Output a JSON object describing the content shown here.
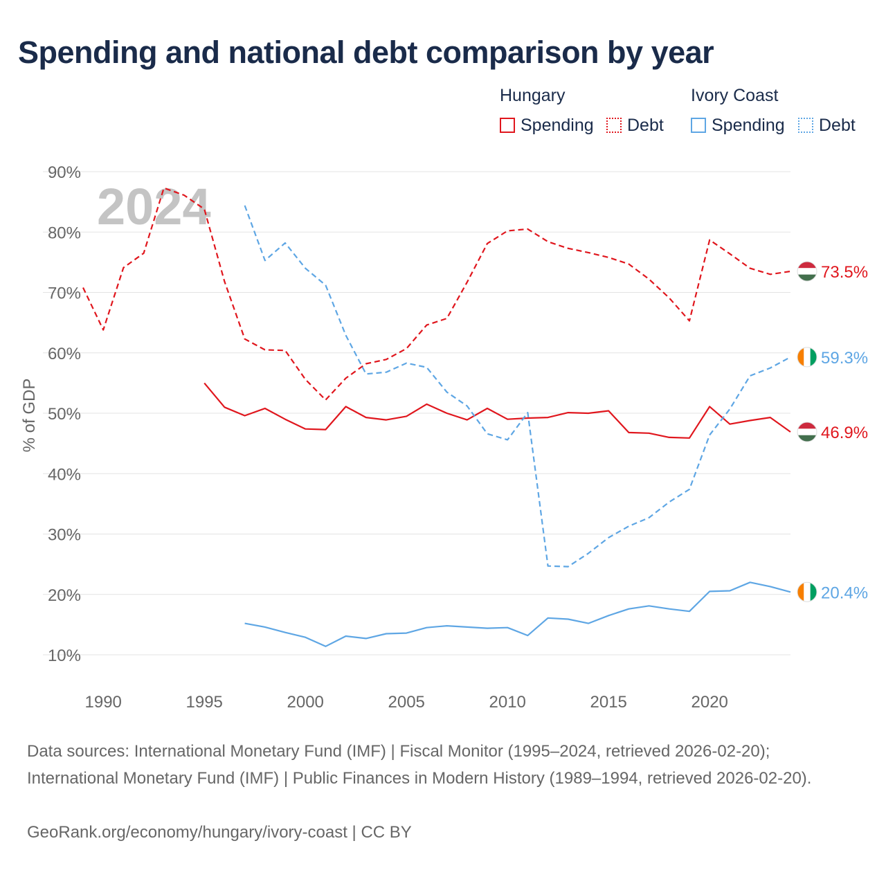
{
  "title": "Spending and national debt comparison by year",
  "legend": {
    "hungary": {
      "name": "Hungary",
      "spending": "Spending",
      "debt": "Debt"
    },
    "ivory_coast": {
      "name": "Ivory Coast",
      "spending": "Spending",
      "debt": "Debt"
    }
  },
  "colors": {
    "hungary": "#e0161d",
    "ivory_coast": "#5ea6e4",
    "grid": "#e3e3e3",
    "axis_text": "#666666",
    "year_watermark": "#c4c4c4"
  },
  "flag_icons": {
    "hungary": "hungary-flag-icon",
    "ivory_coast": "ivory-coast-flag-icon"
  },
  "chart_data": {
    "type": "line",
    "ylabel": "% of GDP",
    "xlim": [
      1989,
      2024
    ],
    "ylim": [
      5,
      90
    ],
    "yticks": [
      10,
      20,
      30,
      40,
      50,
      60,
      70,
      80,
      90
    ],
    "ytick_labels": [
      "10%",
      "20%",
      "30%",
      "40%",
      "50%",
      "60%",
      "70%",
      "80%",
      "90%"
    ],
    "xticks": [
      1990,
      1995,
      2000,
      2005,
      2010,
      2015,
      2020
    ],
    "xtick_labels": [
      "1990",
      "1995",
      "2000",
      "2005",
      "2010",
      "2015",
      "2020"
    ],
    "year_label": "2024",
    "series": [
      {
        "name": "Hungary Debt",
        "country": "hungary",
        "style": "dashed",
        "end_label": "73.5%",
        "x": [
          1989,
          1990,
          1991,
          1992,
          1993,
          1994,
          1995,
          1996,
          1997,
          1998,
          1999,
          2000,
          2001,
          2002,
          2003,
          2004,
          2005,
          2006,
          2007,
          2008,
          2009,
          2010,
          2011,
          2012,
          2013,
          2014,
          2015,
          2016,
          2017,
          2018,
          2019,
          2020,
          2021,
          2022,
          2023,
          2024
        ],
        "values": [
          70.8,
          63.8,
          74.1,
          76.5,
          87.3,
          86.1,
          83.8,
          71.8,
          62.3,
          60.5,
          60.4,
          55.6,
          52.2,
          55.8,
          58.2,
          58.9,
          60.7,
          64.6,
          65.7,
          71.7,
          78.1,
          80.2,
          80.5,
          78.4,
          77.3,
          76.6,
          75.8,
          74.7,
          72.2,
          69.1,
          65.3,
          78.7,
          76.4,
          74.0,
          73.0,
          73.5
        ]
      },
      {
        "name": "Hungary Spending",
        "country": "hungary",
        "style": "solid",
        "end_label": "46.9%",
        "x": [
          1995,
          1996,
          1997,
          1998,
          1999,
          2000,
          2001,
          2002,
          2003,
          2004,
          2005,
          2006,
          2007,
          2008,
          2009,
          2010,
          2011,
          2012,
          2013,
          2014,
          2015,
          2016,
          2017,
          2018,
          2019,
          2020,
          2021,
          2022,
          2023,
          2024
        ],
        "values": [
          55.0,
          51.0,
          49.6,
          50.8,
          49.0,
          47.4,
          47.3,
          51.1,
          49.3,
          48.9,
          49.5,
          51.5,
          50.0,
          48.9,
          50.8,
          49.0,
          49.2,
          49.3,
          50.1,
          50.0,
          50.4,
          46.8,
          46.7,
          46.0,
          45.9,
          51.1,
          48.2,
          48.8,
          49.3,
          46.9
        ]
      },
      {
        "name": "Ivory Coast Debt",
        "country": "ivory_coast",
        "style": "dashed",
        "end_label": "59.3%",
        "x": [
          1997,
          1998,
          1999,
          2000,
          2001,
          2002,
          2003,
          2004,
          2005,
          2006,
          2007,
          2008,
          2009,
          2010,
          2011,
          2012,
          2013,
          2014,
          2015,
          2016,
          2017,
          2018,
          2019,
          2020,
          2021,
          2022,
          2023,
          2024
        ],
        "values": [
          84.4,
          75.3,
          78.2,
          74.0,
          71.2,
          62.9,
          56.5,
          56.8,
          58.3,
          57.6,
          53.5,
          51.2,
          46.6,
          45.6,
          50.1,
          24.7,
          24.6,
          26.8,
          29.4,
          31.3,
          32.7,
          35.3,
          37.4,
          46.4,
          50.7,
          56.2,
          57.5,
          59.3
        ]
      },
      {
        "name": "Ivory Coast Spending",
        "country": "ivory_coast",
        "style": "solid",
        "end_label": "20.4%",
        "x": [
          1997,
          1998,
          1999,
          2000,
          2001,
          2002,
          2003,
          2004,
          2005,
          2006,
          2007,
          2008,
          2009,
          2010,
          2011,
          2012,
          2013,
          2014,
          2015,
          2016,
          2017,
          2018,
          2019,
          2020,
          2021,
          2022,
          2023,
          2024
        ],
        "values": [
          15.2,
          14.6,
          13.7,
          12.9,
          11.4,
          13.1,
          12.7,
          13.5,
          13.6,
          14.5,
          14.8,
          14.6,
          14.4,
          14.5,
          13.2,
          16.1,
          15.9,
          15.2,
          16.5,
          17.6,
          18.1,
          17.6,
          17.2,
          20.5,
          20.6,
          22.0,
          21.3,
          20.4
        ]
      }
    ]
  },
  "footer": {
    "source": "Data sources: International Monetary Fund (IMF) | Fiscal Monitor (1995–2024, retrieved 2026-02-20); International Monetary Fund (IMF) | Public Finances in Modern History (1989–1994, retrieved 2026-02-20).",
    "credit": "GeoRank.org/economy/hungary/ivory-coast | CC BY"
  }
}
